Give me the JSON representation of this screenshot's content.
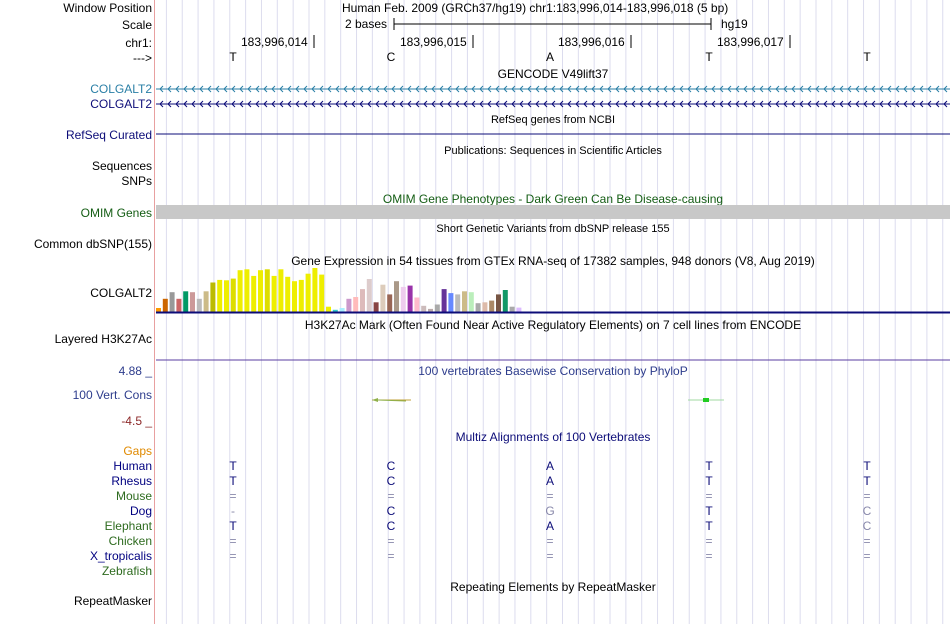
{
  "position": {
    "window_position_label": "Window Position",
    "window_position_text": "Human Feb. 2009 (GRCh37/hg19)   chr1:183,996,014-183,996,018 (5 bp)",
    "scale_label": "Scale",
    "scale_text": "2 bases",
    "assembly": "hg19",
    "chrom_label": "chr1:",
    "coords": [
      "183,996,014",
      "183,996,015",
      "183,996,016",
      "183,996,017"
    ],
    "strand_label": "--->",
    "bases": [
      "T",
      "C",
      "A",
      "T",
      "T"
    ]
  },
  "tracks": {
    "gencode": {
      "title": "GENCODE V49lift37",
      "genes": [
        "COLGALT2",
        "COLGALT2"
      ]
    },
    "refseq": {
      "title": "RefSeq genes from NCBI",
      "label": "RefSeq Curated"
    },
    "publications": {
      "title": "Publications: Sequences in Scientific Articles",
      "labels": [
        "Sequences",
        "SNPs"
      ]
    },
    "omim": {
      "title": "OMIM Gene Phenotypes - Dark Green Can Be Disease-causing",
      "label": "OMIM Genes"
    },
    "dbsnp": {
      "title": "Short Genetic Variants from dbSNP release 155",
      "label": "Common dbSNP(155)"
    },
    "gtex": {
      "title": "Gene Expression in 54 tissues from GTEx RNA-seq of 17382 samples, 948 donors (V8, Aug 2019)",
      "label": "COLGALT2",
      "colors": [
        "#ff9900",
        "#cc6600",
        "#999999",
        "#cc6666",
        "#009966",
        "#cc9999",
        "#bbbbbb",
        "#ccbb88",
        "#bbbb00",
        "#eeee00",
        "#eeee00",
        "#dddd00",
        "#eeee00",
        "#eeee00",
        "#eeee00",
        "#eeee00",
        "#dddd00",
        "#eeee00",
        "#eeee00",
        "#eeee00",
        "#eeee00",
        "#eeee00",
        "#eeee00",
        "#eeee00",
        "#eeee00",
        "#eeee00",
        "#33cccc",
        "#aaeeff",
        "#cc99cc",
        "#ffbbbb",
        "#ddbbbb",
        "#ddcccc",
        "#884444",
        "#ddccbb",
        "#996655",
        "#aa9988",
        "#eeccee",
        "#9933aa",
        "#ffbbcc",
        "#ccbbbb",
        "#bbaaaa",
        "#aaaaaa",
        "#663399",
        "#6688ff",
        "#bbbbbb",
        "#ccbb88",
        "#bbeebb",
        "#aaaaaa",
        "#ddbbaa",
        "#aa8866",
        "#775544",
        "#119966",
        "#aaaaaa",
        "#ddbbff"
      ],
      "values": [
        0.09,
        0.3,
        0.45,
        0.3,
        0.47,
        0.45,
        0.3,
        0.47,
        0.67,
        0.73,
        0.72,
        0.76,
        0.95,
        0.97,
        0.82,
        0.95,
        0.97,
        0.82,
        0.97,
        0.8,
        0.7,
        0.73,
        0.87,
        1.0,
        0.85,
        0.12,
        0.05,
        0.09,
        0.3,
        0.34,
        0.52,
        0.75,
        0.22,
        0.62,
        0.4,
        0.7,
        0.57,
        0.6,
        0.33,
        0.14,
        0.07,
        0.17,
        0.52,
        0.43,
        0.4,
        0.47,
        0.45,
        0.2,
        0.22,
        0.26,
        0.4,
        0.5,
        0.12,
        0.1
      ]
    },
    "h3k27ac": {
      "title": "H3K27Ac Mark (Often Found Near Active Regulatory Elements) on 7 cell lines from ENCODE",
      "label": "Layered H3K27Ac"
    },
    "phylop": {
      "title": "100 vertebrates Basewise Conservation by PhyloP",
      "label": "100 Vert. Cons",
      "max": "4.88 _",
      "min": "-4.5 _"
    },
    "multiz": {
      "title": "Multiz Alignments of 100 Vertebrates",
      "gaps_label": "Gaps",
      "species": [
        {
          "name": "Human",
          "color": "#000080",
          "bases": [
            "T",
            "C",
            "A",
            "T",
            "T"
          ]
        },
        {
          "name": "Rhesus",
          "color": "#000080",
          "bases": [
            "T",
            "C",
            "A",
            "T",
            "T"
          ]
        },
        {
          "name": "Mouse",
          "color": "#2e6b1f",
          "bases": [
            "=",
            "=",
            "=",
            "=",
            "="
          ]
        },
        {
          "name": "Dog",
          "color": "#000080",
          "bases": [
            "-",
            "C",
            "G",
            "T",
            "C"
          ]
        },
        {
          "name": "Elephant",
          "color": "#2e6b1f",
          "bases": [
            "T",
            "C",
            "A",
            "T",
            "C"
          ]
        },
        {
          "name": "Chicken",
          "color": "#2e6b1f",
          "bases": [
            "=",
            "=",
            "=",
            "=",
            "="
          ]
        },
        {
          "name": "X_tropicalis",
          "color": "#000080",
          "bases": [
            "=",
            "=",
            "=",
            "=",
            "="
          ]
        },
        {
          "name": "Zebrafish",
          "color": "#2e6b1f",
          "bases": [
            "",
            "",
            "",
            "",
            ""
          ]
        }
      ]
    },
    "repeatmasker": {
      "title": "Repeating Elements by RepeatMasker",
      "label": "RepeatMasker"
    }
  },
  "colors": {
    "gencode_lift": "#2a7fa6",
    "gene_navy": "#0c0c78",
    "omim_bar": "#c8c8c8",
    "omim_text": "#145d14",
    "phylop_text": "#2d3c8c",
    "phylop_neg": "#8c2828",
    "gaps": "#e08a00",
    "h3k27ac_line": "#5a3ca0"
  }
}
